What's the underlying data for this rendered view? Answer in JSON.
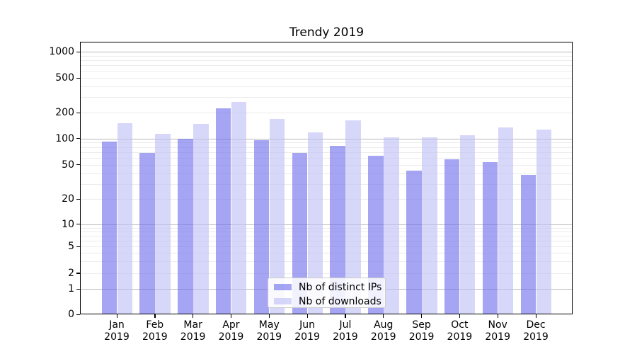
{
  "title": "Trendy 2019",
  "colors": {
    "ips_bar": "rgba(110,110,235,0.62)",
    "downloads_bar": "rgba(190,190,245,0.62)",
    "grid_major": "#b9b9b9",
    "grid_minor": "#ececec",
    "axis_spine": "#000000",
    "text": "#000000"
  },
  "chart_data": {
    "type": "bar",
    "title": "Trendy 2019",
    "xlabel": "",
    "ylabel": "",
    "yscale": "symlog",
    "ylim": [
      0,
      1300
    ],
    "grid": true,
    "legend_position": "lower center",
    "categories": [
      "Jan 2019",
      "Feb 2019",
      "Mar 2019",
      "Apr 2019",
      "May 2019",
      "Jun 2019",
      "Jul 2019",
      "Aug 2019",
      "Sep 2019",
      "Oct 2019",
      "Nov 2019",
      "Dec 2019"
    ],
    "yticks": [
      0,
      1,
      2,
      5,
      10,
      20,
      50,
      100,
      200,
      500,
      1000
    ],
    "minor_grid_values": [
      2,
      3,
      4,
      5,
      6,
      7,
      8,
      9,
      20,
      30,
      40,
      50,
      60,
      70,
      80,
      90,
      200,
      300,
      400,
      500,
      600,
      700,
      800,
      900
    ],
    "major_grid_values": [
      1,
      10,
      100,
      1000
    ],
    "series": [
      {
        "name": "Nb of distinct IPs",
        "values": [
          92,
          68,
          99,
          222,
          96,
          69,
          83,
          63,
          43,
          58,
          54,
          38
        ]
      },
      {
        "name": "Nb of downloads",
        "values": [
          150,
          113,
          148,
          265,
          170,
          118,
          163,
          103,
          103,
          110,
          135,
          126
        ]
      }
    ]
  },
  "legend": {
    "items": [
      {
        "label": "Nb of distinct IPs"
      },
      {
        "label": "Nb of downloads"
      }
    ]
  }
}
